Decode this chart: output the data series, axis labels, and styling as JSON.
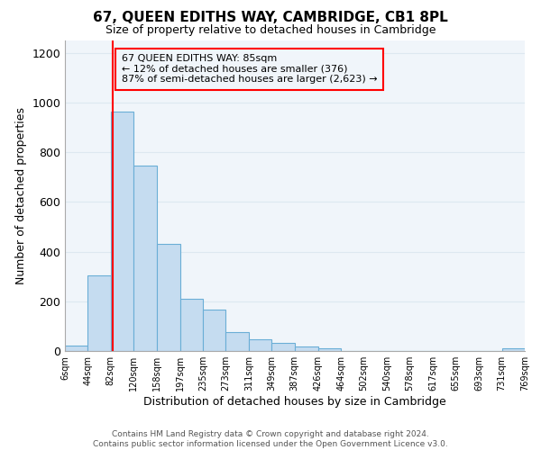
{
  "title": "67, QUEEN EDITHS WAY, CAMBRIDGE, CB1 8PL",
  "subtitle": "Size of property relative to detached houses in Cambridge",
  "xlabel": "Distribution of detached houses by size in Cambridge",
  "ylabel": "Number of detached properties",
  "footer_line1": "Contains HM Land Registry data © Crown copyright and database right 2024.",
  "footer_line2": "Contains public sector information licensed under the Open Government Licence v3.0.",
  "bin_edges": [
    6,
    44,
    82,
    120,
    158,
    197,
    235,
    273,
    311,
    349,
    387,
    426,
    464,
    502,
    540,
    578,
    617,
    655,
    693,
    731,
    769
  ],
  "bar_heights": [
    20,
    305,
    965,
    745,
    430,
    210,
    165,
    75,
    48,
    33,
    18,
    10,
    0,
    0,
    0,
    0,
    0,
    0,
    0,
    10
  ],
  "bar_color": "#c5dcf0",
  "bar_edge_color": "#6aaed6",
  "tick_labels": [
    "6sqm",
    "44sqm",
    "82sqm",
    "120sqm",
    "158sqm",
    "197sqm",
    "235sqm",
    "273sqm",
    "311sqm",
    "349sqm",
    "387sqm",
    "426sqm",
    "464sqm",
    "502sqm",
    "540sqm",
    "578sqm",
    "617sqm",
    "655sqm",
    "693sqm",
    "731sqm",
    "769sqm"
  ],
  "ylim": [
    0,
    1250
  ],
  "yticks": [
    0,
    200,
    400,
    600,
    800,
    1000,
    1200
  ],
  "property_line_x": 85,
  "annotation_title": "67 QUEEN EDITHS WAY: 85sqm",
  "annotation_line1": "← 12% of detached houses are smaller (376)",
  "annotation_line2": "87% of semi-detached houses are larger (2,623) →",
  "grid_color": "#dde8f0",
  "bg_color": "#ffffff",
  "ax_bg_color": "#f0f5fa"
}
